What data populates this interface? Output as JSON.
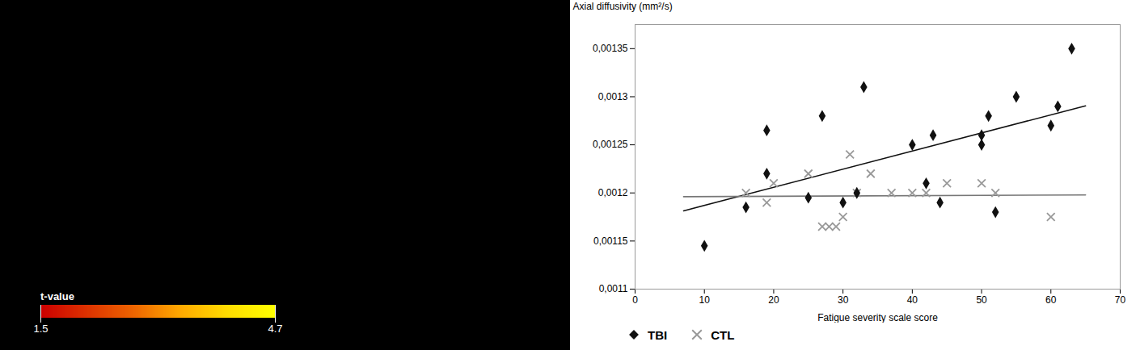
{
  "chart_data": {
    "type": "scatter",
    "xlabel": "Fatigue severity scale score",
    "ylabel": "Axial diffusivity (mm²/s)",
    "xlim": [
      0,
      70
    ],
    "ylim": [
      0.0011,
      0.001375
    ],
    "xticks": [
      0,
      10,
      20,
      30,
      40,
      50,
      60,
      70
    ],
    "yticks": [
      {
        "value": 0.0011,
        "label": "0,0011"
      },
      {
        "value": 0.00115,
        "label": "0,00115"
      },
      {
        "value": 0.0012,
        "label": "0,0012"
      },
      {
        "value": 0.00125,
        "label": "0,00125"
      },
      {
        "value": 0.0013,
        "label": "0,0013"
      },
      {
        "value": 0.00135,
        "label": "0,00135"
      }
    ],
    "legend": "bottom",
    "series": [
      {
        "name": "TBI",
        "color": "#111111",
        "marker": "diamond",
        "x": [
          10,
          16,
          19,
          19,
          25,
          27,
          30,
          32,
          33,
          40,
          42,
          43,
          44,
          50,
          50,
          51,
          52,
          55,
          60,
          61,
          63
        ],
        "values": [
          0.001145,
          0.001185,
          0.001265,
          0.00122,
          0.001195,
          0.00128,
          0.00119,
          0.0012,
          0.00131,
          0.00125,
          0.00121,
          0.00126,
          0.00119,
          0.00126,
          0.00125,
          0.00128,
          0.00118,
          0.0013,
          0.00127,
          0.00129,
          0.00135
        ]
      },
      {
        "name": "CTL",
        "color": "#999999",
        "marker": "x",
        "x": [
          16,
          19,
          20,
          25,
          27,
          28,
          29,
          30,
          31,
          32,
          34,
          37,
          40,
          42,
          45,
          50,
          52,
          60
        ],
        "values": [
          0.0012,
          0.00119,
          0.00121,
          0.00122,
          0.001165,
          0.001165,
          0.001165,
          0.001175,
          0.00124,
          0.0012,
          0.00122,
          0.0012,
          0.0012,
          0.0012,
          0.00121,
          0.00121,
          0.0012,
          0.001175
        ]
      },
      {
        "type": "line",
        "color": "#111111",
        "x": [
          7,
          65
        ],
        "values": [
          0.0011814011,
          0.0012905766
        ]
      },
      {
        "type": "line",
        "color": "#777777",
        "x": [
          7,
          65
        ],
        "values": [
          0.0011961062,
          0.0011978886
        ]
      }
    ],
    "colorbar": {
      "label": "t-value",
      "range": [
        1.5,
        4.7
      ],
      "ticks": [
        1.5,
        4.7
      ],
      "colors": [
        "#cc0000",
        "#dd3300",
        "#ee6600",
        "#ffaa00",
        "#ffdd00",
        "#ffff00"
      ]
    }
  }
}
